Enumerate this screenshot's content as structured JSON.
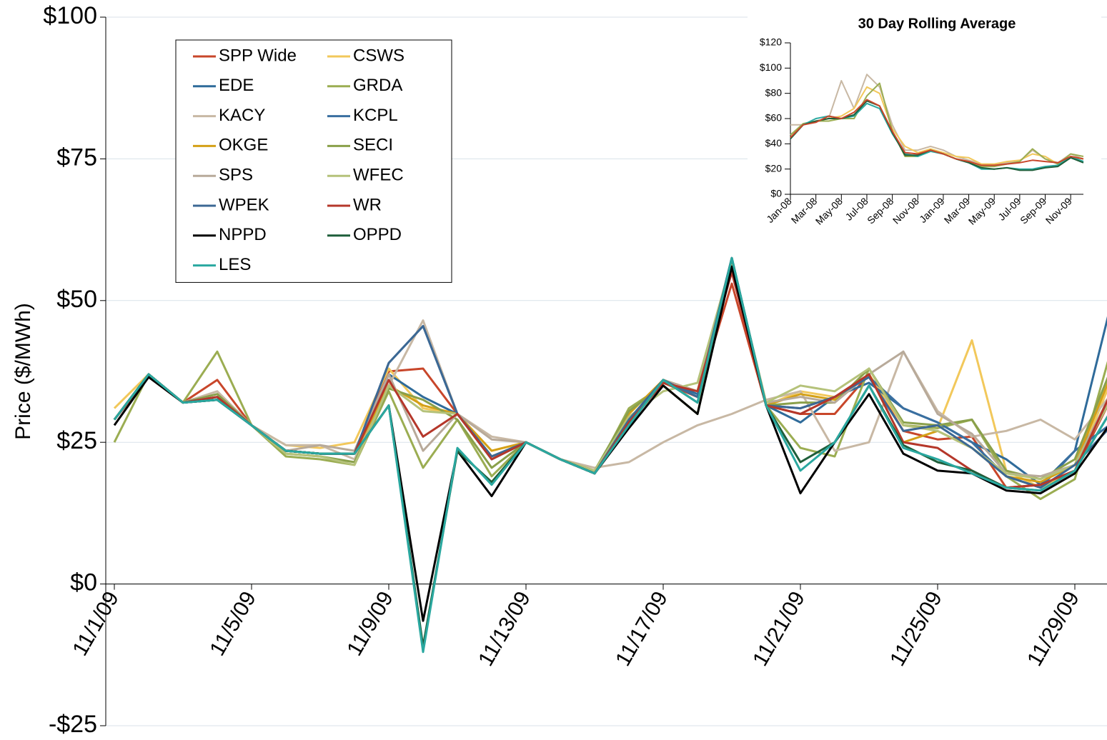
{
  "chart_data": [
    {
      "type": "line",
      "y_label": "Price ($/MWh)",
      "categories": [
        "11/1/09",
        null,
        null,
        null,
        "11/5/09",
        null,
        null,
        null,
        "11/9/09",
        null,
        null,
        null,
        "11/13/09",
        null,
        null,
        null,
        "11/17/09",
        null,
        null,
        null,
        "11/21/09",
        null,
        null,
        null,
        "11/25/09",
        null,
        null,
        null,
        "11/29/09",
        null
      ],
      "ylim": [
        -25,
        100
      ],
      "yticks": [
        {
          "value": -25,
          "label": "-$25"
        },
        {
          "value": 0,
          "label": "$0"
        },
        {
          "value": 25,
          "label": "$25"
        },
        {
          "value": 50,
          "label": "$50"
        },
        {
          "value": 75,
          "label": "$75"
        },
        {
          "value": 100,
          "label": "$100"
        }
      ],
      "grid": true,
      "legend": "upper-left",
      "series": [
        {
          "name": "SPP Wide",
          "color": "#c8462a",
          "values": [
            29,
            36.5,
            32,
            36,
            28,
            23.5,
            23,
            23,
            37.5,
            38,
            30,
            22.5,
            25,
            22,
            20,
            28.5,
            35.5,
            33,
            53,
            31.5,
            30,
            30,
            37,
            27,
            25.5,
            26,
            17,
            17.5,
            20,
            32
          ]
        },
        {
          "name": "CSWS",
          "color": "#f2c85b",
          "values": [
            31,
            37,
            32,
            33,
            28,
            24.5,
            24,
            25,
            38,
            31,
            30,
            23.5,
            25,
            22,
            20,
            29,
            36,
            34,
            57,
            31.5,
            34,
            33,
            37,
            28,
            27.5,
            43,
            20,
            17,
            20,
            35
          ]
        },
        {
          "name": "EDE",
          "color": "#2f6b9a",
          "values": [
            29,
            37,
            32,
            32.5,
            28,
            23.5,
            23,
            23,
            37,
            33,
            30,
            22,
            25,
            22,
            19.5,
            29,
            36,
            33.5,
            57.5,
            31.5,
            28.5,
            33,
            35.5,
            31,
            28.5,
            25,
            22,
            17.5,
            23.5,
            48
          ]
        },
        {
          "name": "GRDA",
          "color": "#9bad52",
          "values": [
            25,
            37,
            32,
            41,
            28,
            22.5,
            22,
            21,
            34,
            20.5,
            29,
            19,
            25,
            22,
            19.5,
            31,
            35,
            30,
            57,
            31.5,
            24,
            22.5,
            38,
            28,
            27.5,
            29,
            19,
            15,
            18.5,
            40
          ]
        },
        {
          "name": "KACY",
          "color": "#c8b8a4",
          "values": [
            29,
            37,
            32,
            34,
            28,
            24.5,
            24.5,
            22,
            35,
            46.5,
            30,
            26,
            25,
            22,
            20.5,
            21.5,
            25,
            28,
            30,
            32.5,
            34,
            23.5,
            25,
            41,
            30.5,
            26,
            27,
            29,
            25.5,
            33
          ]
        },
        {
          "name": "KCPL",
          "color": "#3a6fa0",
          "values": [
            29,
            37,
            32,
            32.5,
            28,
            23.5,
            23,
            23,
            39,
            45.5,
            30,
            22.5,
            25,
            22,
            19.5,
            29,
            36,
            33,
            57.5,
            31.5,
            31,
            33,
            36.5,
            31,
            28.5,
            25,
            19,
            17,
            23.5,
            28
          ]
        },
        {
          "name": "OKGE",
          "color": "#d4a017",
          "values": [
            29,
            37,
            32,
            33,
            28,
            23.5,
            23,
            23,
            35,
            31.5,
            30,
            23.5,
            25,
            22,
            20,
            30,
            36,
            34,
            57,
            31.5,
            33.5,
            32.5,
            37,
            25,
            27,
            24,
            19,
            18,
            21,
            36
          ]
        },
        {
          "name": "SECI",
          "color": "#8aa04a",
          "values": [
            29,
            37,
            32,
            33.5,
            28,
            23,
            22.5,
            21.5,
            34.5,
            32.5,
            29,
            20.5,
            25,
            22,
            20,
            30.5,
            35,
            30,
            57,
            31.5,
            32,
            32,
            38,
            28.5,
            28,
            29,
            20,
            18.5,
            22,
            37
          ]
        },
        {
          "name": "SPS",
          "color": "#b8aa9a",
          "values": [
            29,
            37,
            32,
            33,
            28,
            23.5,
            24.5,
            23.5,
            37,
            23.5,
            30,
            25.5,
            25,
            22,
            20,
            28.5,
            36,
            34,
            57,
            32,
            33,
            32,
            37,
            41,
            30,
            26.5,
            19.5,
            19,
            21,
            33
          ]
        },
        {
          "name": "WFEC",
          "color": "#b5c27a",
          "values": [
            29,
            37,
            32,
            33,
            28,
            23,
            22.5,
            21,
            35,
            30.5,
            30,
            22.5,
            25,
            22,
            20,
            29.5,
            34,
            35.5,
            57,
            32,
            35,
            34,
            38,
            28,
            27,
            24,
            19.5,
            18.5,
            21,
            32
          ]
        },
        {
          "name": "WPEK",
          "color": "#3c6894",
          "values": [
            29,
            37,
            32,
            33,
            28,
            23.5,
            23,
            23,
            39,
            45.5,
            30,
            22.5,
            25,
            22,
            19.5,
            29,
            36,
            33,
            57.5,
            31.5,
            31,
            33,
            36.5,
            27,
            28,
            24,
            19,
            17,
            21,
            27.5
          ]
        },
        {
          "name": "WR",
          "color": "#b5372a",
          "values": [
            29,
            37,
            32,
            33,
            28,
            23.5,
            23,
            23,
            36,
            26,
            30,
            22,
            25,
            22,
            19.5,
            28.5,
            35.5,
            34,
            55,
            31.5,
            30,
            33,
            37,
            25,
            24,
            20,
            17,
            17.5,
            20,
            33
          ]
        },
        {
          "name": "NPPD",
          "color": "#000000",
          "values": [
            28,
            36.5,
            32,
            32.5,
            28,
            23.5,
            23,
            23,
            31.5,
            -6.5,
            23.5,
            15.5,
            25,
            22,
            19.5,
            27.5,
            35,
            30,
            56,
            31.5,
            16,
            25,
            33.5,
            23,
            20,
            19.5,
            16.5,
            16,
            19.5,
            28
          ]
        },
        {
          "name": "OPPD",
          "color": "#1e5e3a",
          "values": [
            29,
            37,
            32,
            32.5,
            28,
            23.5,
            23,
            23,
            31.5,
            -11,
            23.5,
            18,
            25,
            22,
            19.5,
            28,
            36,
            32,
            57.5,
            31.5,
            21.5,
            25,
            35,
            24.5,
            21.5,
            20,
            17,
            16.5,
            20,
            30
          ]
        },
        {
          "name": "LES",
          "color": "#2aa8a0",
          "values": [
            29,
            37,
            32,
            32.5,
            28,
            23.5,
            23,
            23,
            31.5,
            -12,
            24,
            17.5,
            25,
            22,
            19.5,
            28,
            36,
            32,
            57.5,
            31.5,
            20,
            25,
            35,
            24,
            22,
            19.5,
            17,
            16.5,
            20,
            30
          ]
        }
      ]
    },
    {
      "type": "line",
      "title": "30 Day Rolling Average",
      "categories": [
        "Jan-08",
        null,
        "Mar-08",
        null,
        "May-08",
        null,
        "Jul-08",
        null,
        "Sep-08",
        null,
        "Nov-08",
        null,
        "Jan-09",
        null,
        "Mar-09",
        null,
        "May-09",
        null,
        "Jul-09",
        null,
        "Sep-09",
        null,
        "Nov-09",
        null
      ],
      "ylim": [
        0,
        120
      ],
      "yticks": [
        {
          "value": 0,
          "label": "$0"
        },
        {
          "value": 20,
          "label": "$20"
        },
        {
          "value": 40,
          "label": "$40"
        },
        {
          "value": 60,
          "label": "$60"
        },
        {
          "value": 80,
          "label": "$80"
        },
        {
          "value": 100,
          "label": "$100"
        },
        {
          "value": 120,
          "label": "$120"
        }
      ],
      "grid": false,
      "series": [
        {
          "name": "SPS",
          "color": "#c8b8a4",
          "values": [
            55,
            55,
            58,
            60,
            90,
            68,
            95,
            85,
            55,
            35,
            35,
            38,
            35,
            30,
            27,
            24,
            24,
            25,
            26,
            35,
            28,
            25,
            32,
            28
          ]
        },
        {
          "name": "CSWS",
          "color": "#f2c85b",
          "values": [
            47,
            55,
            58,
            60,
            62,
            68,
            85,
            80,
            52,
            38,
            33,
            36,
            33,
            30,
            29,
            24,
            24,
            26,
            27,
            32,
            30,
            24,
            30,
            28
          ]
        },
        {
          "name": "GRDA",
          "color": "#9bad52",
          "values": [
            47,
            56,
            58,
            58,
            60,
            60,
            78,
            88,
            50,
            30,
            30,
            35,
            32,
            28,
            26,
            22,
            22,
            24,
            26,
            36,
            28,
            24,
            32,
            30
          ]
        },
        {
          "name": "LES",
          "color": "#2aa8a0",
          "values": [
            44,
            55,
            60,
            62,
            60,
            62,
            72,
            68,
            48,
            32,
            30,
            34,
            32,
            28,
            25,
            20,
            20,
            21,
            20,
            20,
            22,
            23,
            30,
            26
          ]
        },
        {
          "name": "NPPD",
          "color": "#1e5e3a",
          "values": [
            44,
            55,
            58,
            60,
            60,
            63,
            74,
            70,
            49,
            31,
            31,
            35,
            32,
            28,
            25,
            21,
            20,
            21,
            19,
            19,
            21,
            22,
            29,
            25
          ]
        },
        {
          "name": "SPP Wide",
          "color": "#c8462a",
          "values": [
            45,
            55,
            57,
            62,
            60,
            65,
            75,
            70,
            50,
            33,
            32,
            35,
            32,
            28,
            26,
            23,
            23,
            24,
            25,
            27,
            26,
            25,
            30,
            28
          ]
        }
      ]
    }
  ]
}
